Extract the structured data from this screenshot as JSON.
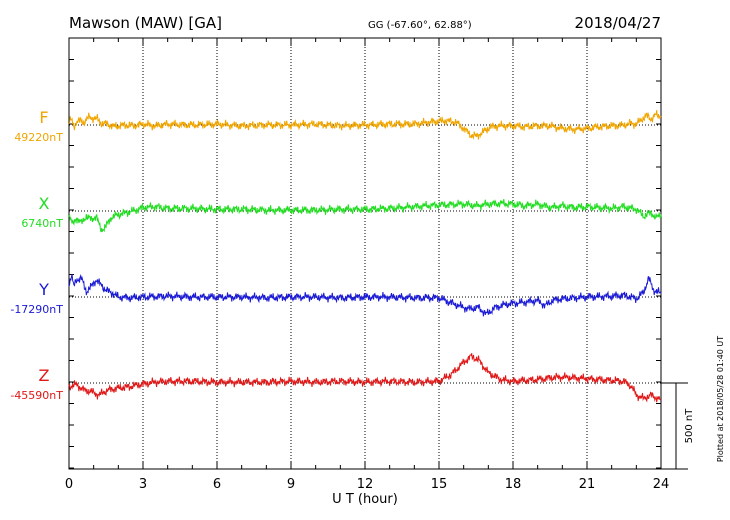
{
  "header": {
    "station": "Mawson (MAW)  [GA]",
    "coords": "GG (-67.60°,  62.88°)",
    "date": "2018/04/27"
  },
  "side_note": "Plotted at 2018/05/28 01:40 UT",
  "scale_label": "500 nT",
  "chart_data": {
    "type": "line",
    "xlabel": "U T (hour)",
    "xlim": [
      0,
      24
    ],
    "xticks": [
      0,
      3,
      6,
      9,
      12,
      15,
      18,
      21,
      24
    ],
    "grid": "dotted vertical every 3 hours, dotted baseline per series",
    "scale_bar_nT": 500,
    "series": [
      {
        "name": "F",
        "baseline_label": "49220nT",
        "color": "#f0a500",
        "points": [
          [
            0,
            15
          ],
          [
            0.1,
            30
          ],
          [
            0.2,
            -10
          ],
          [
            0.3,
            20
          ],
          [
            0.45,
            25
          ],
          [
            0.6,
            15
          ],
          [
            0.8,
            45
          ],
          [
            1.0,
            40
          ],
          [
            1.15,
            35
          ],
          [
            1.3,
            10
          ],
          [
            1.6,
            5
          ],
          [
            1.8,
            -10
          ],
          [
            2.0,
            -5
          ],
          [
            2.3,
            0
          ],
          [
            2.6,
            -5
          ],
          [
            3.0,
            5
          ],
          [
            3.5,
            -5
          ],
          [
            4.0,
            5
          ],
          [
            5.0,
            0
          ],
          [
            6.0,
            5
          ],
          [
            7.0,
            -5
          ],
          [
            8.0,
            0
          ],
          [
            9.0,
            0
          ],
          [
            10.0,
            5
          ],
          [
            11.0,
            -5
          ],
          [
            12.0,
            0
          ],
          [
            13.0,
            5
          ],
          [
            14.0,
            5
          ],
          [
            14.8,
            20
          ],
          [
            15.3,
            25
          ],
          [
            15.7,
            15
          ],
          [
            16.0,
            -20
          ],
          [
            16.3,
            -60
          ],
          [
            16.5,
            -65
          ],
          [
            16.8,
            -40
          ],
          [
            17.1,
            -10
          ],
          [
            17.5,
            -5
          ],
          [
            18.0,
            -5
          ],
          [
            18.5,
            -10
          ],
          [
            19.0,
            -5
          ],
          [
            19.5,
            -5
          ],
          [
            20.0,
            -20
          ],
          [
            20.5,
            -25
          ],
          [
            21.0,
            -20
          ],
          [
            21.5,
            -10
          ],
          [
            22.0,
            -5
          ],
          [
            22.5,
            0
          ],
          [
            22.8,
            10
          ],
          [
            23.0,
            5
          ],
          [
            23.2,
            30
          ],
          [
            23.4,
            55
          ],
          [
            23.6,
            35
          ],
          [
            23.8,
            60
          ],
          [
            24.0,
            50
          ]
        ]
      },
      {
        "name": "X",
        "baseline_label": "6740nT",
        "color": "#22dd22",
        "points": [
          [
            0,
            -20
          ],
          [
            0.15,
            -80
          ],
          [
            0.3,
            -40
          ],
          [
            0.5,
            -70
          ],
          [
            0.7,
            -30
          ],
          [
            0.9,
            -50
          ],
          [
            1.1,
            -30
          ],
          [
            1.3,
            -110
          ],
          [
            1.5,
            -90
          ],
          [
            1.7,
            -40
          ],
          [
            2.0,
            -20
          ],
          [
            2.3,
            -10
          ],
          [
            2.6,
            0
          ],
          [
            3.0,
            20
          ],
          [
            3.5,
            25
          ],
          [
            4.0,
            15
          ],
          [
            5.0,
            15
          ],
          [
            6.0,
            10
          ],
          [
            7.0,
            10
          ],
          [
            8.0,
            5
          ],
          [
            9.0,
            5
          ],
          [
            10.0,
            5
          ],
          [
            11.0,
            10
          ],
          [
            12.0,
            10
          ],
          [
            13.0,
            15
          ],
          [
            14.0,
            25
          ],
          [
            15.0,
            35
          ],
          [
            16.0,
            40
          ],
          [
            16.5,
            30
          ],
          [
            17.0,
            40
          ],
          [
            17.5,
            45
          ],
          [
            18.0,
            40
          ],
          [
            18.5,
            30
          ],
          [
            19.0,
            40
          ],
          [
            19.5,
            20
          ],
          [
            20.0,
            30
          ],
          [
            20.5,
            20
          ],
          [
            21.0,
            25
          ],
          [
            22.0,
            15
          ],
          [
            22.5,
            25
          ],
          [
            23.0,
            10
          ],
          [
            23.3,
            -30
          ],
          [
            23.6,
            -10
          ],
          [
            23.8,
            -40
          ],
          [
            24.0,
            -20
          ]
        ]
      },
      {
        "name": "Y",
        "baseline_label": "-17290nT",
        "color": "#1a1ad6",
        "points": [
          [
            0,
            70
          ],
          [
            0.1,
            130
          ],
          [
            0.2,
            60
          ],
          [
            0.3,
            100
          ],
          [
            0.5,
            110
          ],
          [
            0.7,
            30
          ],
          [
            0.9,
            60
          ],
          [
            1.1,
            100
          ],
          [
            1.3,
            70
          ],
          [
            1.5,
            40
          ],
          [
            1.8,
            20
          ],
          [
            2.0,
            0
          ],
          [
            2.5,
            -5
          ],
          [
            3.0,
            0
          ],
          [
            4.0,
            5
          ],
          [
            5.0,
            0
          ],
          [
            6.0,
            0
          ],
          [
            7.0,
            0
          ],
          [
            8.0,
            -5
          ],
          [
            9.0,
            0
          ],
          [
            10.0,
            0
          ],
          [
            11.0,
            -5
          ],
          [
            12.0,
            0
          ],
          [
            13.0,
            0
          ],
          [
            14.0,
            -5
          ],
          [
            15.0,
            -5
          ],
          [
            15.6,
            -40
          ],
          [
            16.2,
            -70
          ],
          [
            16.6,
            -60
          ],
          [
            16.9,
            -100
          ],
          [
            17.3,
            -60
          ],
          [
            17.8,
            -40
          ],
          [
            18.5,
            -30
          ],
          [
            19.0,
            -20
          ],
          [
            19.3,
            -50
          ],
          [
            19.6,
            -20
          ],
          [
            20.0,
            -10
          ],
          [
            21.0,
            0
          ],
          [
            22.0,
            5
          ],
          [
            22.5,
            10
          ],
          [
            23.0,
            -10
          ],
          [
            23.3,
            30
          ],
          [
            23.5,
            110
          ],
          [
            23.7,
            40
          ],
          [
            24.0,
            20
          ]
        ]
      },
      {
        "name": "Z",
        "baseline_label": "-45590nT",
        "color": "#e01818",
        "points": [
          [
            0,
            -20
          ],
          [
            0.3,
            -10
          ],
          [
            0.6,
            -40
          ],
          [
            0.9,
            -50
          ],
          [
            1.2,
            -70
          ],
          [
            1.6,
            -40
          ],
          [
            2.0,
            -30
          ],
          [
            2.5,
            -20
          ],
          [
            3.0,
            -5
          ],
          [
            3.5,
            5
          ],
          [
            4.0,
            10
          ],
          [
            5.0,
            10
          ],
          [
            6.0,
            5
          ],
          [
            7.0,
            5
          ],
          [
            8.0,
            5
          ],
          [
            9.0,
            10
          ],
          [
            10.0,
            5
          ],
          [
            11.0,
            10
          ],
          [
            12.0,
            5
          ],
          [
            13.0,
            10
          ],
          [
            14.0,
            5
          ],
          [
            15.0,
            10
          ],
          [
            15.5,
            50
          ],
          [
            16.0,
            120
          ],
          [
            16.3,
            155
          ],
          [
            16.6,
            135
          ],
          [
            17.0,
            60
          ],
          [
            17.5,
            20
          ],
          [
            18.0,
            10
          ],
          [
            18.5,
            15
          ],
          [
            19.0,
            20
          ],
          [
            19.5,
            30
          ],
          [
            20.0,
            35
          ],
          [
            21.0,
            25
          ],
          [
            22.0,
            15
          ],
          [
            22.5,
            10
          ],
          [
            22.8,
            -20
          ],
          [
            23.0,
            -70
          ],
          [
            23.3,
            -90
          ],
          [
            23.6,
            -70
          ],
          [
            24.0,
            -100
          ]
        ]
      }
    ]
  }
}
